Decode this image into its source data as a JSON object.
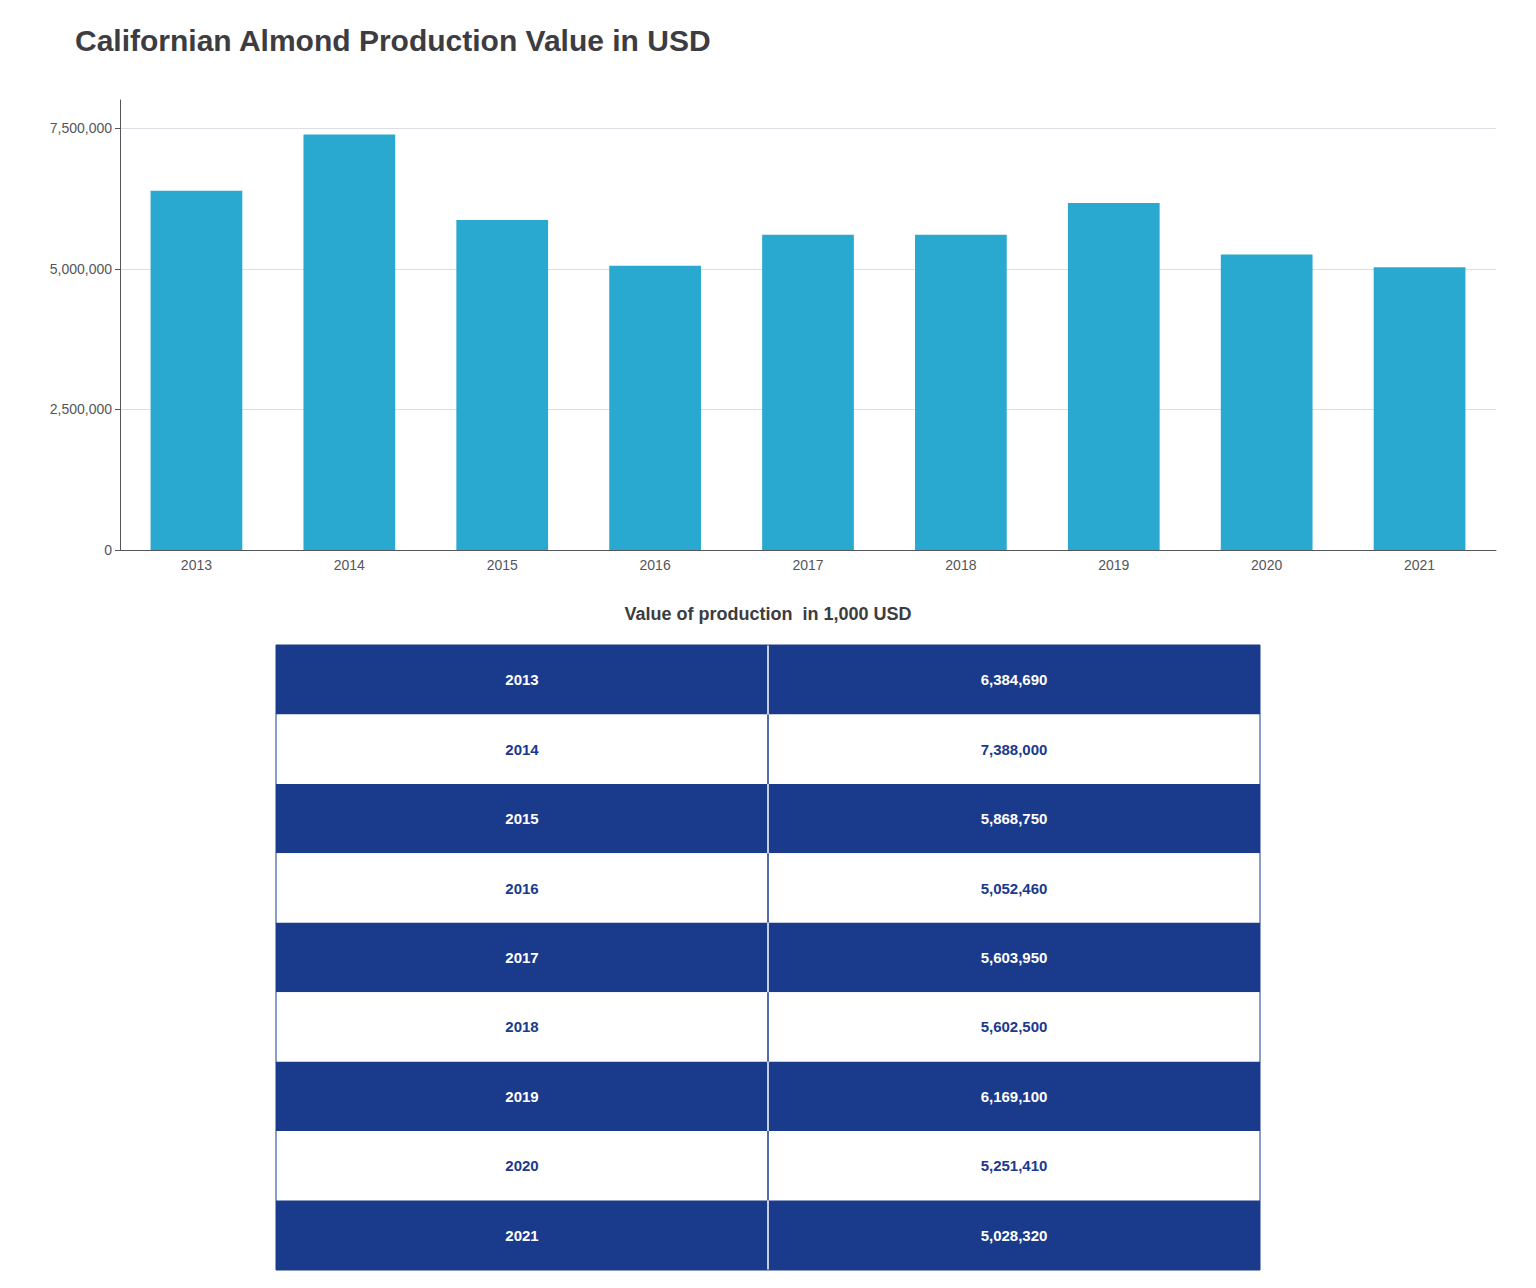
{
  "chart_data": [
    {
      "type": "bar",
      "title": "Californian Almond Production Value in USD",
      "categories": [
        "2013",
        "2014",
        "2015",
        "2016",
        "2017",
        "2018",
        "2019",
        "2020",
        "2021"
      ],
      "values": [
        6384690,
        7388000,
        5868750,
        5052460,
        5603950,
        5602500,
        6169100,
        5251410,
        5028320
      ],
      "color": "#29a9d0",
      "ylim": [
        0,
        8000000
      ],
      "yticks": [
        0,
        {
          "value": 2500000,
          "label": "2,500,000"
        },
        {
          "value": 5000000,
          "label": "5,000,000"
        },
        {
          "value": 7500000,
          "label": "7,500,000"
        }
      ],
      "grid": true
    },
    {
      "type": "table",
      "title": "Value of production  in 1,000 USD",
      "categories": [
        "2013",
        "2014",
        "2015",
        "2016",
        "2017",
        "2018",
        "2019",
        "2020",
        "2021"
      ],
      "values": [
        6384690,
        7388000,
        5868750,
        5052460,
        5603950,
        5602500,
        6169100,
        5251410,
        5028320
      ],
      "value_labels": [
        "6,384,690",
        "7,388,000",
        "5,868,750",
        "5,052,460",
        "5,603,950",
        "5,602,500",
        "6,169,100",
        "5,251,410",
        "5,028,320"
      ],
      "colors": [
        "#1a3a8c",
        "#ffffff",
        "#1a3a8c",
        "#ffffff",
        "#1a3a8c",
        "#ffffff",
        "#1a3a8c",
        "#ffffff",
        "#1a3a8c"
      ]
    }
  ]
}
